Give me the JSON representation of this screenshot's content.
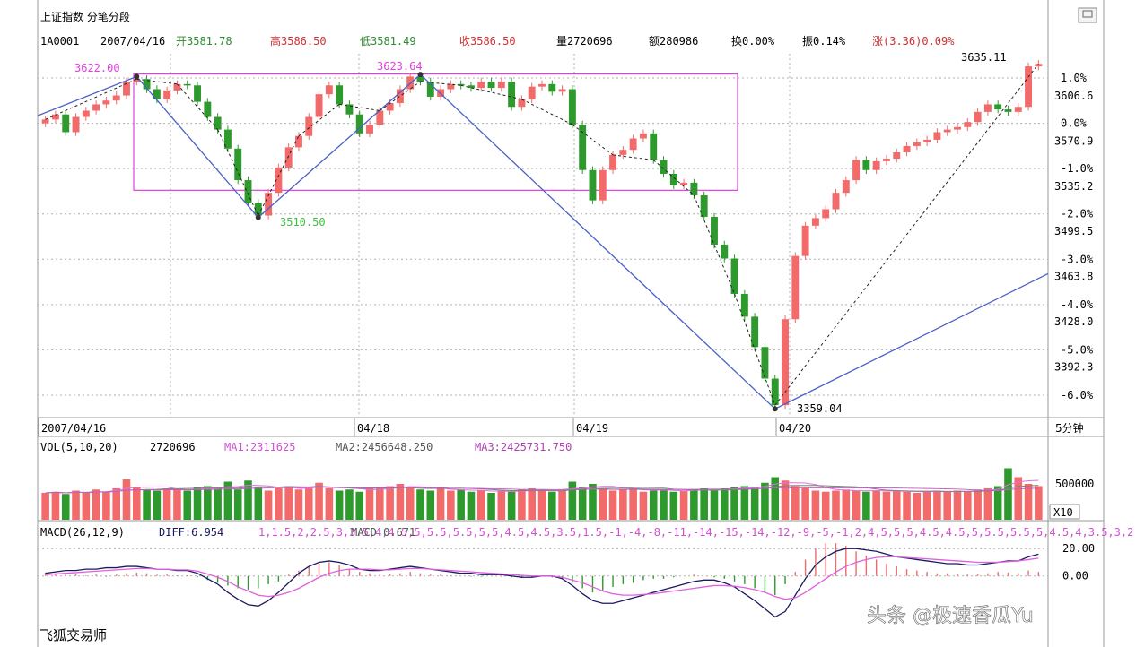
{
  "app": {
    "title": "上证指数  分笔分段",
    "software": "飞狐交易师",
    "watermark": "头条 @极速香瓜Yu"
  },
  "quote": {
    "code": "1A0001",
    "date": "2007/04/16",
    "open": "开3581.78",
    "high": "高3586.50",
    "low": "低3581.49",
    "close": "收3586.50",
    "volume": "量2720696",
    "amount": "额280986",
    "turnover": "换0.00%",
    "amplitude": "振0.14%",
    "change": "涨(3.36)0.09%"
  },
  "colors": {
    "up": "#f26a6a",
    "down": "#2e9a2e",
    "pivot_line": "#4a5fc8",
    "box": "#e040e0",
    "grid": "#b0b0b0",
    "ma1": "#e070e0",
    "ma2": "#808080",
    "ma3": "#c060c0",
    "dif": "#1a1a60",
    "dea": "#e060e0"
  },
  "chart_data": [
    {
      "type": "candlestick",
      "title": "上证指数 分笔分段",
      "period": "5分钟",
      "period_label": "5分钟",
      "x_ticks": [
        "2007/04/16",
        "04/18",
        "04/19",
        "04/20"
      ],
      "y_ticks_price": [
        "3606.6",
        "3570.9",
        "3535.2",
        "3499.5",
        "3463.8",
        "3428.0",
        "3392.3"
      ],
      "y_ticks_pct": [
        "1.0%",
        "0.0%",
        "-1.0%",
        "-2.0%",
        "-3.0%",
        "-4.0%",
        "-5.0%",
        "-6.0%"
      ],
      "pct_zero_price": 3585,
      "price_range": [
        3355,
        3640
      ],
      "annotations": [
        {
          "text": "3622.00",
          "price": 3622.0
        },
        {
          "text": "3623.64",
          "price": 3623.64
        },
        {
          "text": "3510.50",
          "price": 3510.5
        },
        {
          "text": "3359.04",
          "price": 3359.04
        },
        {
          "text": "3635.11",
          "price": 3635.11
        }
      ],
      "box": {
        "price_top": 3624,
        "price_bottom": 3532
      },
      "pivots": [
        3622.0,
        3510.5,
        3623.64,
        3359.04
      ],
      "closes": [
        3588,
        3592,
        3578,
        3590,
        3595,
        3600,
        3603,
        3607,
        3618,
        3620,
        3612,
        3604,
        3611,
        3616,
        3615,
        3602,
        3590,
        3580,
        3565,
        3540,
        3522,
        3512,
        3530,
        3550,
        3566,
        3575,
        3590,
        3608,
        3615,
        3600,
        3592,
        3577,
        3584,
        3595,
        3601,
        3612,
        3622,
        3618,
        3606,
        3612,
        3616,
        3615,
        3613,
        3618,
        3613,
        3618,
        3598,
        3604,
        3614,
        3616,
        3610,
        3612,
        3584,
        3548,
        3524,
        3548,
        3560,
        3564,
        3573,
        3577,
        3556,
        3545,
        3536,
        3538,
        3528,
        3511,
        3489,
        3478,
        3450,
        3432,
        3408,
        3383,
        3362,
        3430,
        3480,
        3504,
        3510,
        3517,
        3530,
        3540,
        3556,
        3548,
        3555,
        3557,
        3562,
        3567,
        3570,
        3572,
        3578,
        3580,
        3582,
        3586,
        3594,
        3600,
        3596,
        3594,
        3598,
        3630,
        3632
      ],
      "volume_panel": {
        "label": "VOL(5,10,20)",
        "value": "2720696",
        "ma1": "MA1:2311625",
        "ma2": "MA2:2456648.250",
        "ma3": "MA3:2425731.750",
        "tick": "500000",
        "unit": "X10",
        "volumes": [
          2.4,
          2.5,
          2.3,
          2.6,
          2.4,
          2.7,
          2.5,
          2.8,
          3.6,
          2.9,
          2.7,
          2.6,
          2.8,
          2.7,
          2.6,
          2.9,
          3.0,
          2.8,
          3.4,
          2.7,
          3.5,
          2.9,
          2.6,
          2.8,
          3.0,
          2.7,
          2.9,
          3.3,
          2.8,
          2.6,
          2.7,
          2.5,
          2.8,
          2.9,
          3.0,
          3.2,
          2.9,
          2.7,
          2.6,
          2.8,
          2.6,
          2.7,
          2.5,
          2.6,
          2.4,
          2.6,
          2.5,
          2.7,
          2.8,
          2.6,
          2.5,
          2.6,
          3.4,
          2.9,
          3.2,
          2.8,
          2.6,
          2.7,
          2.8,
          2.5,
          2.6,
          2.7,
          2.5,
          2.6,
          2.7,
          2.8,
          2.6,
          2.8,
          2.9,
          3.0,
          2.9,
          3.3,
          3.8,
          3.5,
          3.0,
          2.8,
          2.6,
          2.5,
          2.6,
          2.7,
          2.6,
          2.5,
          2.6,
          2.5,
          2.6,
          2.5,
          2.4,
          2.5,
          2.6,
          2.5,
          2.6,
          2.5,
          2.7,
          2.8,
          3.0,
          4.6,
          3.8,
          3.2,
          3.0
        ],
        "vol_max": 6.0
      },
      "macd_panel": {
        "label": "MACD(26,12,9)",
        "diff": "DIFF:6.954",
        "dea": [
          1,
          1.5,
          2,
          2.5,
          3,
          3.5,
          4,
          4.5,
          5,
          5.5,
          5.5,
          5,
          5,
          4.5,
          4.5,
          3.5,
          1.5,
          -1,
          -4,
          -8,
          -11,
          -14,
          -15,
          -14,
          -12,
          -9,
          -5,
          -1,
          2,
          4,
          5,
          5,
          5,
          4.5,
          4.5,
          5,
          5.5,
          5.5,
          5,
          4.5,
          4,
          3.5,
          3,
          2.5,
          2,
          1.5,
          1,
          0.5,
          0,
          0,
          0,
          -1,
          -3,
          -5,
          -8,
          -11,
          -13,
          -14,
          -14,
          -13.5,
          -13,
          -12,
          -11,
          -10,
          -9,
          -8,
          -7,
          -7,
          -7.5,
          -8.5,
          -10,
          -12,
          -15,
          -17,
          -16,
          -12,
          -7,
          -2,
          3,
          7,
          10,
          12,
          13.5,
          14,
          14,
          13.5,
          13,
          12.5,
          12,
          11.5,
          11,
          10.5,
          10,
          10,
          10,
          10.5,
          11,
          12,
          13
        ],
        "macd": "MACD:0.671",
        "y_ticks": [
          "20.00",
          "0.00"
        ],
        "range": [
          -48,
          28
        ],
        "macd_hist": [
          2.5,
          2,
          1,
          1.5,
          0.5,
          1,
          -0.5,
          1,
          2,
          2.5,
          2,
          1,
          1.5,
          0.5,
          0.5,
          -1,
          -3,
          -5,
          -7,
          -9,
          -10,
          -9,
          -6,
          -4,
          1,
          4,
          7,
          9,
          10,
          8,
          5,
          3,
          2,
          1,
          1.5,
          2,
          3,
          2,
          1,
          1,
          0.5,
          0,
          -0.5,
          -0.5,
          0,
          -0.5,
          -1,
          -1.5,
          -1,
          -0.5,
          -1,
          -2,
          -5,
          -9,
          -12,
          -11,
          -8,
          -6,
          -5,
          -3,
          -2,
          -2,
          -1,
          0,
          1,
          0,
          -1,
          -2,
          -4,
          -6,
          -9,
          -12,
          -14,
          -6,
          3,
          12,
          20,
          24,
          24,
          22,
          18,
          15,
          12,
          9,
          7,
          5,
          4,
          3,
          2,
          2,
          1.5,
          1,
          1.5,
          2,
          3,
          2.5,
          2,
          4,
          3
        ],
        "dif": [
          2,
          3,
          4,
          4,
          5,
          5,
          6,
          6,
          7,
          7,
          6,
          5,
          5,
          4,
          4,
          2,
          -2,
          -6,
          -12,
          -17,
          -21,
          -22,
          -18,
          -12,
          -5,
          2,
          7,
          10,
          11,
          10,
          8,
          5,
          4,
          4,
          5,
          6,
          7,
          6,
          5,
          4,
          3,
          2,
          2,
          1,
          1,
          1,
          0,
          -1,
          -1,
          0,
          0,
          -2,
          -7,
          -13,
          -18,
          -20,
          -20,
          -18,
          -16,
          -14,
          -12,
          -10,
          -8,
          -6,
          -4,
          -3,
          -3,
          -5,
          -8,
          -13,
          -18,
          -24,
          -30,
          -26,
          -14,
          -2,
          8,
          14,
          18,
          20,
          20,
          19,
          18,
          16,
          14,
          13,
          12,
          11,
          10,
          9,
          9,
          8,
          8,
          9,
          10,
          11,
          11,
          14,
          16
        ]
      }
    }
  ]
}
